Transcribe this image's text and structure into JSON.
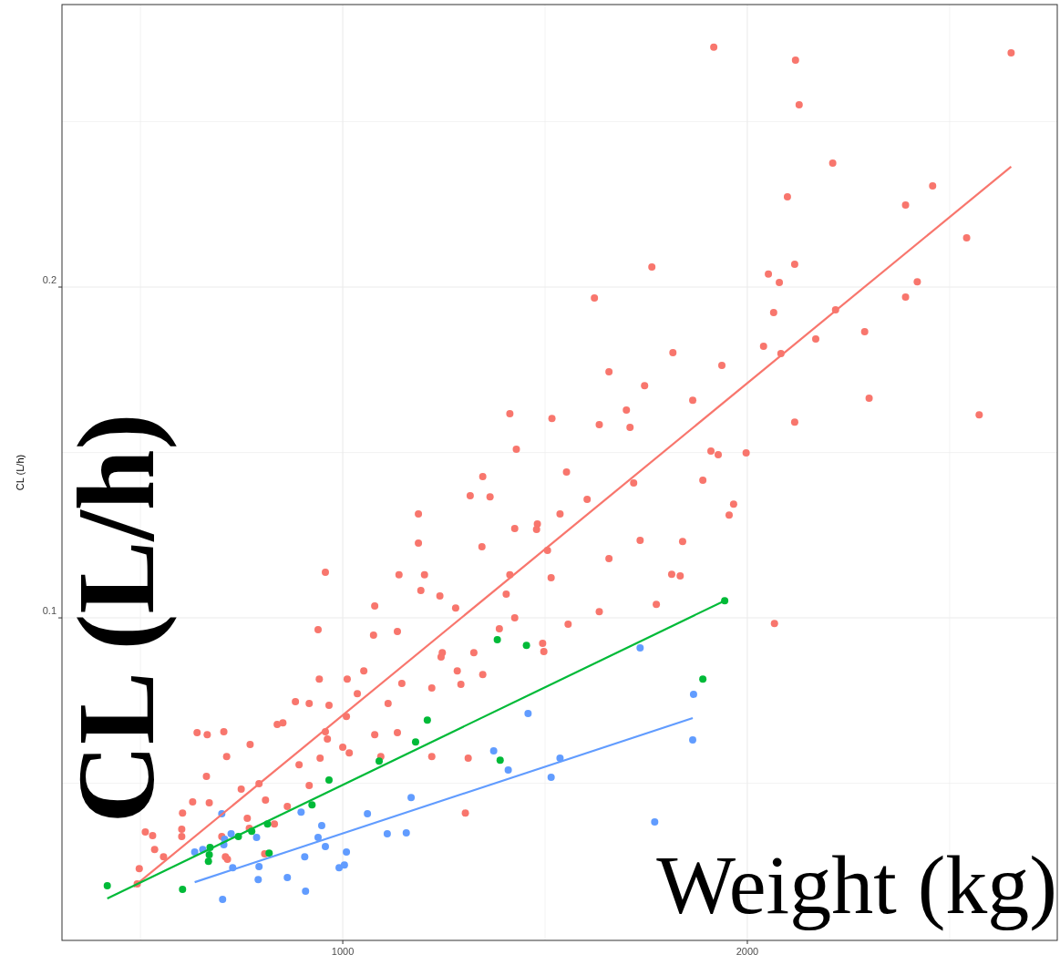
{
  "chart_data": {
    "type": "scatter",
    "ylabel": "CL (L/h)",
    "annotations": [
      "CL (L/h)",
      "Weight (kg)"
    ],
    "xlim": [
      306,
      2766
    ],
    "ylim": [
      0.0025,
      0.2854
    ],
    "xticks": [
      {
        "value": 500,
        "label": null
      },
      1000,
      {
        "value": 1500,
        "label": null
      },
      2000,
      {
        "value": 2500,
        "label": null
      }
    ],
    "yticks": [
      {
        "value": 0.05,
        "label": null
      },
      0.1,
      {
        "value": 0.15,
        "label": null
      },
      0.2,
      {
        "value": 0.25,
        "label": null
      }
    ],
    "grid": true,
    "marker": "circle",
    "series": [
      {
        "color": "#f8766d",
        "x": [
          2652,
          1917,
          2119,
          2128,
          2211,
          2458,
          2099,
          2391,
          2542,
          1764,
          2052,
          2117,
          2079,
          1622,
          2391,
          2420,
          2065,
          2218,
          2040,
          2290,
          2083,
          2169,
          1816,
          1937,
          1658,
          1865,
          2301,
          1746,
          2573,
          2117,
          1413,
          1517,
          1634,
          1928,
          1966,
          1997,
          1910,
          1701,
          1710,
          1429,
          1537,
          1346,
          1315,
          1364,
          1187,
          1425,
          1481,
          1553,
          1604,
          1658,
          1735,
          1813,
          1834,
          1775,
          1840,
          1955,
          1890,
          1634,
          1515,
          1506,
          1557,
          1494,
          1497,
          1425,
          1404,
          1387,
          957,
          1202,
          1139,
          1076,
          1135,
          939,
          942,
          917,
          883,
          1036,
          1052,
          1079,
          1193,
          1240,
          1243,
          1279,
          1324,
          1346,
          1292,
          1220,
          1303,
          1310,
          1009,
          957,
          962,
          1000,
          1016,
          1079,
          1094,
          892,
          838,
          852,
          771,
          713,
          665,
          640,
          706,
          663,
          670,
          629,
          604,
          602,
          602,
          535,
          512,
          530,
          497,
          492,
          749,
          793,
          809,
          764,
          831,
          863,
          769,
          715,
          807,
          701,
          557,
          710,
          917,
          944,
          966,
          1187,
          1011,
          1146,
          1344,
          1413,
          1246,
          1112,
          1135,
          1220,
          1479,
          1283,
          2067,
          1719
        ],
        "values": [
          0.2708,
          0.2725,
          0.2686,
          0.2551,
          0.2375,
          0.2306,
          0.2273,
          0.2248,
          0.2149,
          0.2061,
          0.2039,
          0.2069,
          0.2014,
          0.1967,
          0.197,
          0.2016,
          0.1923,
          0.1931,
          0.1821,
          0.1865,
          0.1799,
          0.1843,
          0.1802,
          0.1763,
          0.1744,
          0.1658,
          0.1664,
          0.1702,
          0.1614,
          0.1592,
          0.1617,
          0.1603,
          0.1584,
          0.1493,
          0.1344,
          0.1499,
          0.1504,
          0.1628,
          0.1576,
          0.151,
          0.1314,
          0.1427,
          0.1369,
          0.1366,
          0.1314,
          0.127,
          0.1284,
          0.1441,
          0.1358,
          0.1179,
          0.1234,
          0.1132,
          0.1127,
          0.1041,
          0.1231,
          0.1311,
          0.1416,
          0.1019,
          0.1121,
          0.1204,
          0.0981,
          0.0923,
          0.0898,
          0.1,
          0.1072,
          0.0967,
          0.1138,
          0.113,
          0.113,
          0.0948,
          0.0959,
          0.0964,
          0.0815,
          0.0741,
          0.0747,
          0.0771,
          0.084,
          0.1036,
          0.1083,
          0.1066,
          0.0882,
          0.103,
          0.0895,
          0.0829,
          0.0799,
          0.0581,
          0.041,
          0.0576,
          0.0702,
          0.0656,
          0.0634,
          0.0609,
          0.0592,
          0.0647,
          0.0581,
          0.0556,
          0.0678,
          0.0683,
          0.0617,
          0.0581,
          0.0647,
          0.0653,
          0.0656,
          0.0521,
          0.0441,
          0.0444,
          0.041,
          0.0361,
          0.0339,
          0.03,
          0.0353,
          0.0342,
          0.0242,
          0.0196,
          0.0482,
          0.0499,
          0.0449,
          0.0394,
          0.0377,
          0.043,
          0.0364,
          0.027,
          0.0287,
          0.0339,
          0.0278,
          0.0278,
          0.0493,
          0.0576,
          0.0736,
          0.1226,
          0.0815,
          0.0802,
          0.1215,
          0.113,
          0.0895,
          0.0741,
          0.0653,
          0.0788,
          0.1267,
          0.084,
          0.0983,
          0.1408
        ]
      },
      {
        "color": "#00ba38",
        "x": [
          418,
          604,
          670,
          668,
          742,
          814,
          818,
          775,
          924,
          966,
          1090,
          1180,
          1209,
          1382,
          1389,
          1454,
          1890,
          1944,
          672
        ],
        "values": [
          0.019,
          0.0179,
          0.0284,
          0.0264,
          0.0339,
          0.0377,
          0.0289,
          0.0355,
          0.0435,
          0.051,
          0.0567,
          0.0625,
          0.0691,
          0.0934,
          0.057,
          0.0917,
          0.0815,
          0.1052,
          0.0306
        ]
      },
      {
        "color": "#619cff",
        "x": [
          634,
          654,
          701,
          708,
          706,
          724,
          728,
          703,
          787,
          793,
          791,
          863,
          897,
          906,
          908,
          939,
          948,
          957,
          991,
          1004,
          1009,
          1061,
          1110,
          1157,
          1169,
          1373,
          1409,
          1458,
          1515,
          1537,
          1735,
          1771,
          1867,
          1865
        ],
        "values": [
          0.0292,
          0.03,
          0.0408,
          0.0331,
          0.0314,
          0.0347,
          0.0245,
          0.0149,
          0.0336,
          0.0248,
          0.0209,
          0.0215,
          0.0413,
          0.0278,
          0.0174,
          0.0336,
          0.0372,
          0.0309,
          0.0245,
          0.0253,
          0.0292,
          0.0408,
          0.0347,
          0.035,
          0.0457,
          0.0598,
          0.054,
          0.0711,
          0.0518,
          0.0576,
          0.0909,
          0.0383,
          0.0769,
          0.0631
        ]
      },
      {
        "type": "line",
        "marker": "none",
        "color": "#f8766d",
        "x": [
          483,
          2652
        ],
        "values": [
          0.0187,
          0.2364
        ]
      },
      {
        "type": "line",
        "marker": "none",
        "color": "#00ba38",
        "x": [
          418,
          1944
        ],
        "values": [
          0.0152,
          0.1052
        ]
      },
      {
        "type": "line",
        "marker": "none",
        "color": "#619cff",
        "x": [
          634,
          1865
        ],
        "values": [
          0.0201,
          0.0697
        ]
      }
    ]
  }
}
